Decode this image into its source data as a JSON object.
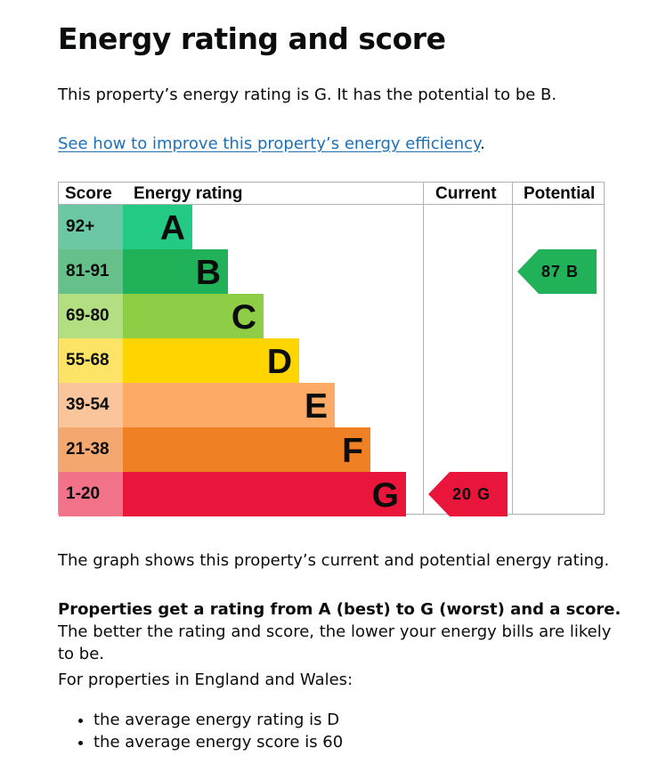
{
  "heading": "Energy rating and score",
  "intro": "This property’s energy rating is G. It has the potential to be B.",
  "link": {
    "text": "See how to improve this property’s energy efficiency",
    "suffix": "."
  },
  "chart_data": {
    "type": "bar",
    "columns": {
      "score": "Score",
      "energy_rating": "Energy rating",
      "current": "Current",
      "potential": "Potential"
    },
    "bands": [
      {
        "letter": "A",
        "score_range": "92+",
        "color": "#23ca84",
        "range_color": "#6cc8a4"
      },
      {
        "letter": "B",
        "score_range": "81-91",
        "color": "#21b159",
        "range_color": "#66c08a"
      },
      {
        "letter": "C",
        "score_range": "69-80",
        "color": "#8dce46",
        "range_color": "#b3de82"
      },
      {
        "letter": "D",
        "score_range": "55-68",
        "color": "#ffd500",
        "range_color": "#fde366"
      },
      {
        "letter": "E",
        "score_range": "39-54",
        "color": "#fcaa65",
        "range_color": "#fbc59b"
      },
      {
        "letter": "F",
        "score_range": "21-38",
        "color": "#ef8023",
        "range_color": "#f4a86f"
      },
      {
        "letter": "G",
        "score_range": "1-20",
        "color": "#e9153b",
        "range_color": "#f27389"
      }
    ],
    "current": {
      "score": 20,
      "band": "G",
      "label": "20 G",
      "color": "#e9153b"
    },
    "potential": {
      "score": 87,
      "band": "B",
      "label": "87 B",
      "color": "#21b159"
    }
  },
  "graph_text": "The graph shows this property’s current and potential energy rating.",
  "rating_info": {
    "bold": "Properties get a rating from A (best) to G (worst) and a score.",
    "rest": " The better the rating and score, the lower your energy bills are likely to be."
  },
  "average_intro": "For properties in England and Wales:",
  "averages": [
    "the average energy rating is D",
    "the average energy score is 60"
  ]
}
